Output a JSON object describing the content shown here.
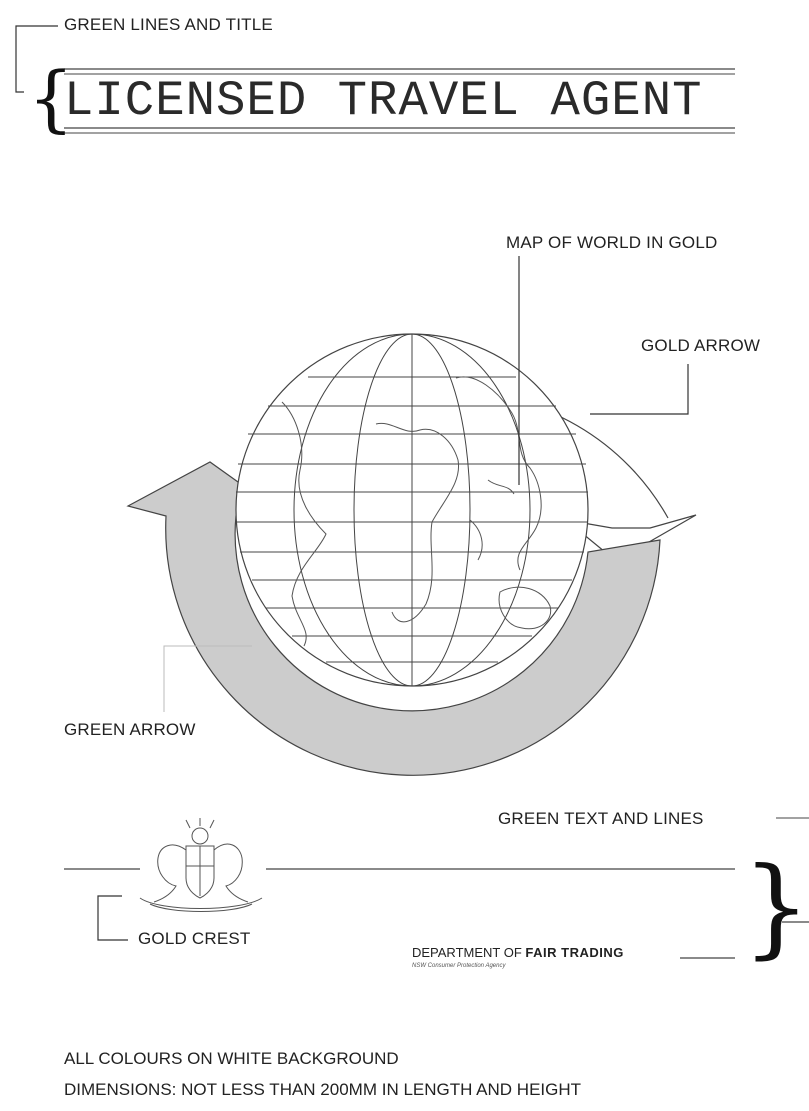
{
  "labels": {
    "green_lines_and_title": "GREEN LINES AND TITLE",
    "map_of_world": "MAP OF WORLD IN GOLD",
    "gold_arrow": "GOLD ARROW",
    "green_arrow": "GREEN ARROW",
    "green_text_and_lines": "GREEN TEXT AND LINES",
    "gold_crest": "GOLD CREST"
  },
  "title": "LICENSED TRAVEL AGENT",
  "department": {
    "prefix": "DEPARTMENT OF ",
    "bold": "FAIR TRADING",
    "subtitle": "NSW Consumer Protection Agency"
  },
  "footer": {
    "line1": "ALL COLOURS ON WHITE BACKGROUND",
    "line2": "DIMENSIONS: NOT LESS THAN 200MM IN LENGTH AND HEIGHT"
  },
  "colors": {
    "line": "#333333",
    "arrow_fill": "#cccccc",
    "background": "#ffffff"
  }
}
